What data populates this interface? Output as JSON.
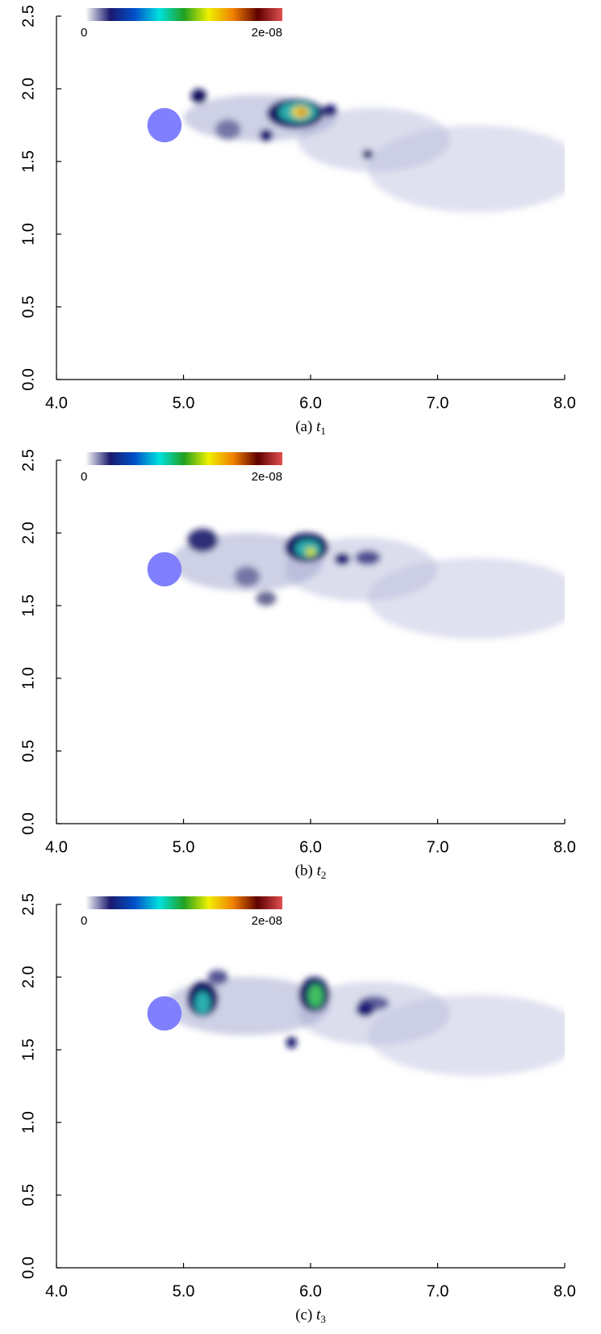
{
  "chart_data": [
    {
      "type": "field",
      "caption_label": "(a)",
      "caption_var": "t",
      "caption_sub": "1",
      "xlim": [
        4,
        8
      ],
      "ylim": [
        0,
        2.5
      ],
      "xticks": [
        {
          "value": 4,
          "label": "4.0"
        },
        {
          "value": 5,
          "label": "5.0"
        },
        {
          "value": 6,
          "label": "6.0"
        },
        {
          "value": 7,
          "label": "7.0"
        },
        {
          "value": 8,
          "label": "8.0"
        }
      ],
      "yticks": [
        {
          "value": 0,
          "label": "0.0"
        },
        {
          "value": 0.5,
          "label": "0.5"
        },
        {
          "value": 1,
          "label": "1.0"
        },
        {
          "value": 1.5,
          "label": "1.5"
        },
        {
          "value": 2,
          "label": "2.0"
        },
        {
          "value": 2.5,
          "label": "2.5"
        }
      ],
      "colorbar": {
        "range": [
          0,
          2e-08
        ],
        "ticks": [
          0,
          {
            "value": 2e-08,
            "label": "2e-08"
          }
        ],
        "colors": [
          "#ffffff",
          "#1a1a6e",
          "#0050c8",
          "#00e0e0",
          "#20a020",
          "#f0f000",
          "#f08000",
          "#600000",
          "#e05050"
        ]
      },
      "obstacle": {
        "x": 4.85,
        "y": 1.75,
        "r": 0.135,
        "color": "#8080ff"
      }
    },
    {
      "type": "field",
      "caption_label": "(b)",
      "caption_var": "t",
      "caption_sub": "2",
      "xlim": [
        4,
        8
      ],
      "ylim": [
        0,
        2.5
      ],
      "xticks": [
        {
          "value": 4,
          "label": "4.0"
        },
        {
          "value": 5,
          "label": "5.0"
        },
        {
          "value": 6,
          "label": "6.0"
        },
        {
          "value": 7,
          "label": "7.0"
        },
        {
          "value": 8,
          "label": "8.0"
        }
      ],
      "yticks": [
        {
          "value": 0,
          "label": "0.0"
        },
        {
          "value": 0.5,
          "label": "0.5"
        },
        {
          "value": 1,
          "label": "1.0"
        },
        {
          "value": 1.5,
          "label": "1.5"
        },
        {
          "value": 2,
          "label": "2.0"
        },
        {
          "value": 2.5,
          "label": "2.5"
        }
      ],
      "colorbar": {
        "range": [
          0,
          2e-08
        ],
        "ticks": [
          0,
          {
            "value": 2e-08,
            "label": "2e-08"
          }
        ],
        "colors": [
          "#ffffff",
          "#1a1a6e",
          "#0050c8",
          "#00e0e0",
          "#20a020",
          "#f0f000",
          "#f08000",
          "#600000",
          "#e05050"
        ]
      },
      "obstacle": {
        "x": 4.85,
        "y": 1.75,
        "r": 0.135,
        "color": "#8080ff"
      }
    },
    {
      "type": "field",
      "caption_label": "(c)",
      "caption_var": "t",
      "caption_sub": "3",
      "xlim": [
        4,
        8
      ],
      "ylim": [
        0,
        2.5
      ],
      "xticks": [
        {
          "value": 4,
          "label": "4.0"
        },
        {
          "value": 5,
          "label": "5.0"
        },
        {
          "value": 6,
          "label": "6.0"
        },
        {
          "value": 7,
          "label": "7.0"
        },
        {
          "value": 8,
          "label": "8.0"
        }
      ],
      "yticks": [
        {
          "value": 0,
          "label": "0.0"
        },
        {
          "value": 0.5,
          "label": "0.5"
        },
        {
          "value": 1,
          "label": "1.0"
        },
        {
          "value": 1.5,
          "label": "1.5"
        },
        {
          "value": 2,
          "label": "2.0"
        },
        {
          "value": 2.5,
          "label": "2.5"
        }
      ],
      "colorbar": {
        "range": [
          0,
          2e-08
        ],
        "ticks": [
          0,
          {
            "value": 2e-08,
            "label": "2e-08"
          }
        ],
        "colors": [
          "#ffffff",
          "#1a1a6e",
          "#0050c8",
          "#00e0e0",
          "#20a020",
          "#f0f000",
          "#f08000",
          "#600000",
          "#e05050"
        ]
      },
      "obstacle": {
        "x": 4.85,
        "y": 1.75,
        "r": 0.135,
        "color": "#8080ff"
      }
    }
  ]
}
